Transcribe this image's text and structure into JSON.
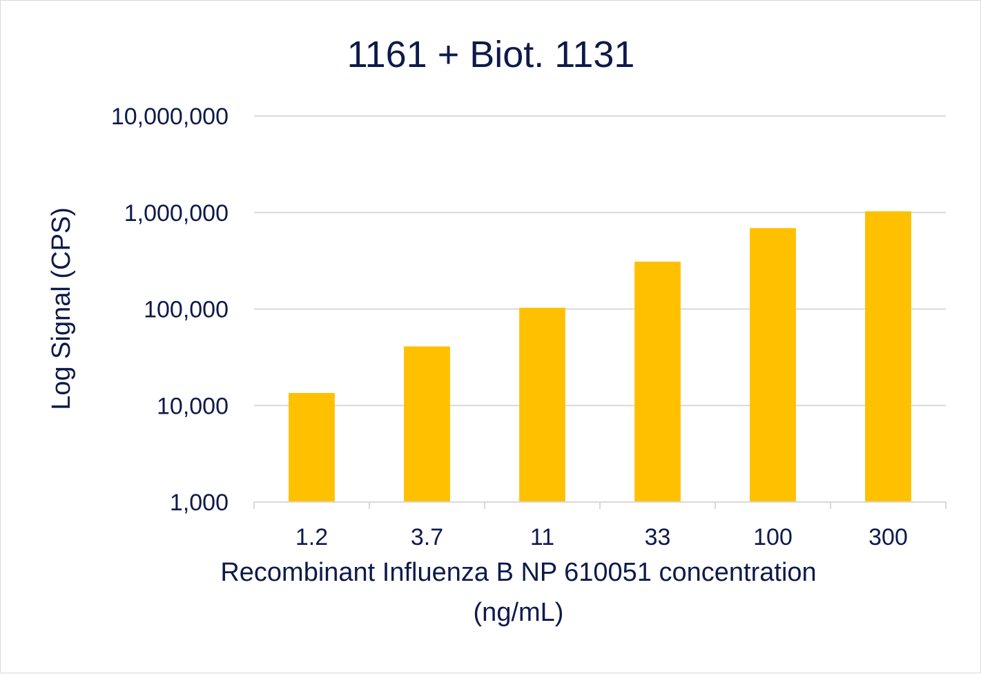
{
  "chart_data": {
    "type": "bar",
    "title": "1161 + Biot. 1131",
    "categories": [
      "1.2",
      "3.7",
      "11",
      "33",
      "100",
      "300"
    ],
    "values": [
      13500,
      41000,
      103000,
      310000,
      690000,
      1030000
    ],
    "xlabel_lines": [
      "Recombinant Influenza B NP 610051 concentration",
      "(ng/mL)"
    ],
    "ylabel": "Log Signal (CPS)",
    "yscale": "log",
    "ylim": [
      1000,
      10000000
    ],
    "yticks": [
      1000,
      10000,
      100000,
      1000000,
      10000000
    ],
    "ytick_labels": [
      "1,000",
      "10,000",
      "100,000",
      "1,000,000",
      "10,000,000"
    ],
    "grid": true,
    "colors": {
      "bar": "#ffc000",
      "grid": "#d9d9d9",
      "text": "#0d1a4a"
    }
  }
}
